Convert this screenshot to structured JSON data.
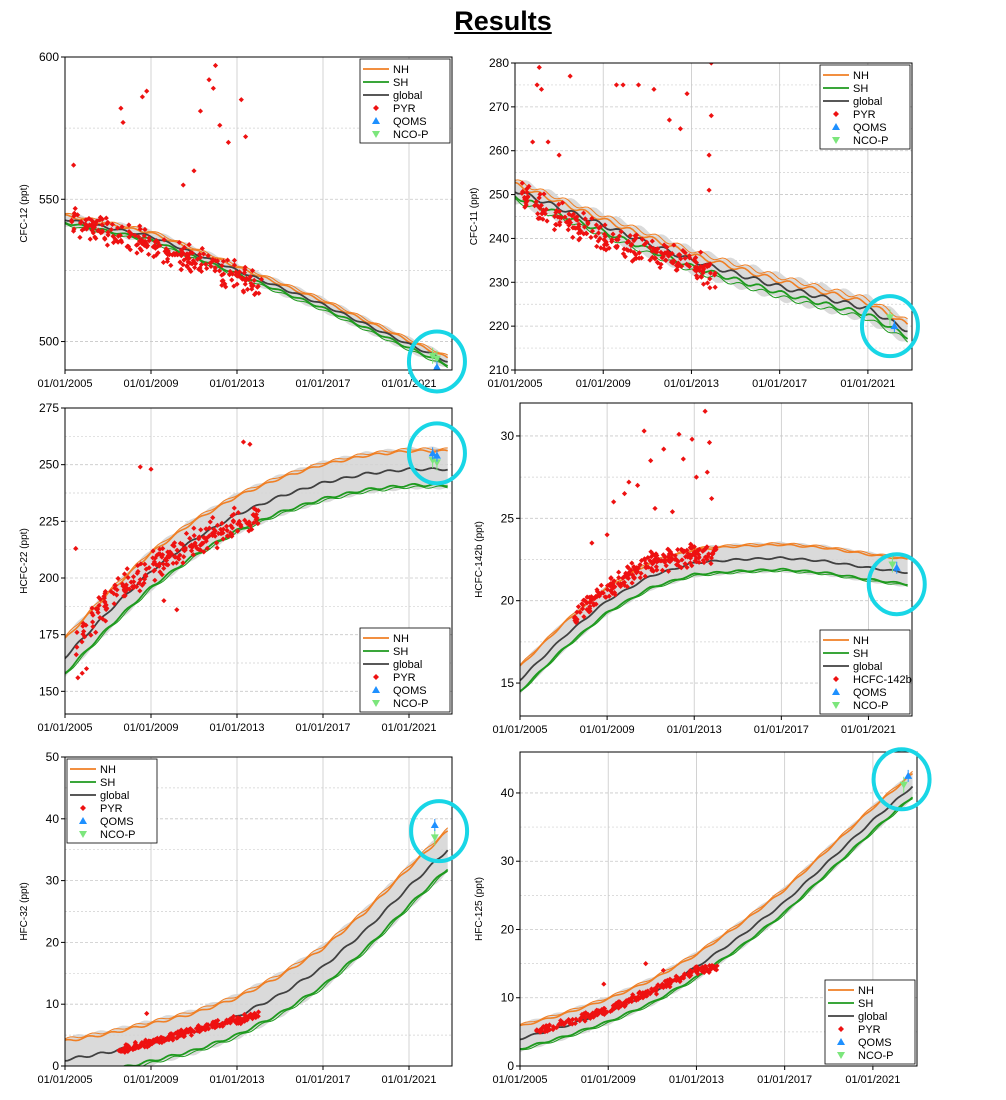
{
  "page": {
    "title": "Results"
  },
  "colors": {
    "nh": "#f07f24",
    "sh": "#1e9a1e",
    "global": "#404040",
    "band": "#d4d4d4",
    "pyr": "#ee1111",
    "qoms": "#1e90ff",
    "nco": "#7ce67c",
    "highlight": "#18d6e6"
  },
  "legend_labels": {
    "nh": "NH",
    "sh": "SH",
    "global": "global",
    "pyr": "PYR",
    "qoms": "QOMS",
    "nco": "NCO-P"
  },
  "chart_data": [
    {
      "type": "line",
      "id": "cfc12",
      "ylabel": "CFC-12 (ppt)",
      "xlim": [
        "01/01/2005",
        "01/01/2023"
      ],
      "ylim": [
        490,
        600
      ],
      "yticks": [
        500,
        550,
        600
      ],
      "xticks": [
        "01/01/2005",
        "01/01/2009",
        "01/01/2013",
        "01/01/2017",
        "01/01/2021"
      ],
      "grid": true,
      "legend_placement": "top-right",
      "scatter_label": "PYR",
      "series_model": {
        "global": [
          [
            2005,
            543
          ],
          [
            2009,
            537
          ],
          [
            2013,
            525
          ],
          [
            2017,
            513
          ],
          [
            2021,
            499
          ],
          [
            2022.8,
            493
          ]
        ],
        "nh_offset": 1.2,
        "sh_offset": -1.2,
        "band_width": 1.2
      },
      "pyr": {
        "x_range": [
          2005.3,
          2014.2
        ],
        "base": [
          [
            2005,
            543
          ],
          [
            2009,
            534
          ],
          [
            2013,
            523
          ],
          [
            2014.2,
            520
          ]
        ],
        "spread": 6,
        "outliers": [
          [
            2005.4,
            562
          ],
          [
            2007.6,
            582
          ],
          [
            2007.7,
            577
          ],
          [
            2008.6,
            586
          ],
          [
            2008.8,
            588
          ],
          [
            2011.3,
            581
          ],
          [
            2011.7,
            592
          ],
          [
            2012.0,
            597
          ],
          [
            2011.9,
            589
          ],
          [
            2012.2,
            576
          ],
          [
            2012.6,
            570
          ],
          [
            2013.2,
            585
          ],
          [
            2013.4,
            572
          ],
          [
            2010.5,
            555
          ],
          [
            2011.0,
            560
          ]
        ]
      },
      "qoms": [
        [
          2022.2,
          489
        ],
        [
          2022.3,
          491
        ]
      ],
      "nco": [
        [
          2022.1,
          495
        ],
        [
          2022.3,
          494
        ]
      ],
      "highlight": {
        "x": 2022.3,
        "y": 493
      }
    },
    {
      "type": "line",
      "id": "cfc11",
      "ylabel": "CFC-11 (ppt)",
      "xlim": [
        "01/01/2005",
        "01/01/2023"
      ],
      "ylim": [
        210,
        280
      ],
      "yticks": [
        210,
        220,
        230,
        240,
        250,
        260,
        270,
        280
      ],
      "xticks": [
        "01/01/2005",
        "01/01/2009",
        "01/01/2013",
        "01/01/2017",
        "01/01/2021"
      ],
      "grid": true,
      "legend_placement": "top-right",
      "scatter_label": "PYR",
      "series_model": {
        "global": [
          [
            2005,
            251
          ],
          [
            2009,
            243
          ],
          [
            2013,
            235
          ],
          [
            2017,
            229
          ],
          [
            2021,
            224
          ],
          [
            2022.8,
            219
          ]
        ],
        "nh_offset": 1.3,
        "sh_offset": -1.4,
        "band_width": 1.5
      },
      "pyr": {
        "x_range": [
          2005.3,
          2014.2
        ],
        "base": [
          [
            2005,
            250
          ],
          [
            2009,
            240
          ],
          [
            2013,
            234
          ],
          [
            2014.2,
            232
          ]
        ],
        "spread": 4,
        "outliers": [
          [
            2006.0,
            275
          ],
          [
            2006.1,
            279
          ],
          [
            2006.2,
            274
          ],
          [
            2007.5,
            277
          ],
          [
            2009.6,
            275
          ],
          [
            2009.9,
            275
          ],
          [
            2010.6,
            275
          ],
          [
            2011.3,
            274
          ],
          [
            2012.0,
            267
          ],
          [
            2012.5,
            265
          ],
          [
            2012.8,
            273
          ],
          [
            2013.9,
            280
          ],
          [
            2013.9,
            268
          ],
          [
            2013.8,
            259
          ],
          [
            2013.8,
            251
          ],
          [
            2006.5,
            262
          ],
          [
            2005.8,
            262
          ],
          [
            2007.0,
            259
          ]
        ]
      },
      "qoms": [
        [
          2022.2,
          220
        ]
      ],
      "nco": [
        [
          2022.0,
          222
        ]
      ],
      "highlight": {
        "x": 2022.0,
        "y": 220
      }
    },
    {
      "type": "line",
      "id": "hcfc22",
      "ylabel": "HCFC-22 (ppt)",
      "xlim": [
        "01/01/2005",
        "01/01/2023"
      ],
      "ylim": [
        140,
        275
      ],
      "yticks": [
        150,
        175,
        200,
        225,
        250,
        275
      ],
      "xticks": [
        "01/01/2005",
        "01/01/2009",
        "01/01/2013",
        "01/01/2017",
        "01/01/2021"
      ],
      "grid": true,
      "legend_placement": "bottom-right",
      "scatter_label": "PYR",
      "series_model": {
        "global": [
          [
            2005,
            165
          ],
          [
            2007,
            185
          ],
          [
            2009,
            203
          ],
          [
            2011,
            217
          ],
          [
            2013,
            228
          ],
          [
            2015,
            236
          ],
          [
            2017,
            242
          ],
          [
            2019,
            246
          ],
          [
            2021,
            248
          ],
          [
            2022.8,
            248
          ]
        ],
        "nh_offset": 8,
        "sh_offset": -7,
        "band_width": 1.5
      },
      "pyr": {
        "x_range": [
          2005.5,
          2014.0
        ],
        "base": [
          [
            2005.5,
            170
          ],
          [
            2007,
            190
          ],
          [
            2009,
            205
          ],
          [
            2011,
            215
          ],
          [
            2013,
            224
          ],
          [
            2014,
            228
          ]
        ],
        "spread": 8,
        "outliers": [
          [
            2005.6,
            156
          ],
          [
            2005.8,
            158
          ],
          [
            2006.0,
            160
          ],
          [
            2005.5,
            213
          ],
          [
            2008.5,
            249
          ],
          [
            2009.0,
            248
          ],
          [
            2013.3,
            260
          ],
          [
            2013.6,
            259
          ],
          [
            2009.6,
            190
          ],
          [
            2010.2,
            186
          ]
        ]
      },
      "qoms": [
        [
          2022.1,
          255
        ],
        [
          2022.3,
          254
        ]
      ],
      "nco": [
        [
          2022.1,
          252
        ],
        [
          2022.3,
          251
        ]
      ],
      "highlight": {
        "x": 2022.3,
        "y": 255
      }
    },
    {
      "type": "line",
      "id": "hcfc142b",
      "ylabel": "HCFC-142b (ppt)",
      "xlim": [
        "01/01/2005",
        "01/01/2023"
      ],
      "ylim": [
        13,
        32
      ],
      "yticks": [
        15,
        20,
        25,
        30
      ],
      "xticks": [
        "01/01/2005",
        "01/01/2009",
        "01/01/2013",
        "01/01/2017",
        "01/01/2021"
      ],
      "grid": true,
      "legend_placement": "bottom-right",
      "scatter_label": "HCFC-142b",
      "series_model": {
        "global": [
          [
            2005,
            15.2
          ],
          [
            2007,
            17.8
          ],
          [
            2009,
            20.0
          ],
          [
            2011,
            21.5
          ],
          [
            2013,
            22.3
          ],
          [
            2015,
            22.5
          ],
          [
            2017,
            22.6
          ],
          [
            2019,
            22.4
          ],
          [
            2021,
            22.0
          ],
          [
            2022.8,
            21.7
          ]
        ],
        "nh_offset": 0.8,
        "sh_offset": -0.7,
        "band_width": 0.15
      },
      "pyr": {
        "x_range": [
          2007.5,
          2014.0
        ],
        "base": [
          [
            2007.5,
            19.0
          ],
          [
            2009,
            20.8
          ],
          [
            2011,
            22.3
          ],
          [
            2013,
            22.8
          ],
          [
            2014,
            22.9
          ]
        ],
        "spread": 0.8,
        "outliers": [
          [
            2010.7,
            30.3
          ],
          [
            2011.6,
            29.2
          ],
          [
            2012.3,
            30.1
          ],
          [
            2012.9,
            29.8
          ],
          [
            2013.5,
            31.5
          ],
          [
            2013.7,
            29.6
          ],
          [
            2010.4,
            27.0
          ],
          [
            2011.0,
            28.5
          ],
          [
            2012.5,
            28.6
          ],
          [
            2013.1,
            27.5
          ],
          [
            2009.3,
            26.0
          ],
          [
            2009.8,
            26.5
          ],
          [
            2010.0,
            27.2
          ],
          [
            2011.2,
            25.6
          ],
          [
            2012.0,
            25.4
          ],
          [
            2013.6,
            27.8
          ],
          [
            2013.8,
            26.2
          ],
          [
            2009.0,
            24.0
          ],
          [
            2008.3,
            23.5
          ]
        ]
      },
      "qoms": [
        [
          2022.3,
          22.0
        ]
      ],
      "nco": [
        [
          2022.1,
          22.2
        ]
      ],
      "highlight": {
        "x": 2022.3,
        "y": 21.0
      }
    },
    {
      "type": "line",
      "id": "hfc32",
      "ylabel": "HFC-32 (ppt)",
      "xlim": [
        "01/01/2005",
        "01/01/2023"
      ],
      "ylim": [
        0,
        50
      ],
      "yticks": [
        0,
        10,
        20,
        30,
        40,
        50
      ],
      "xticks": [
        "01/01/2005",
        "01/01/2009",
        "01/01/2013",
        "01/01/2017",
        "01/01/2021"
      ],
      "grid": true,
      "legend_placement": "top-left",
      "scatter_label": "PYR",
      "series_model": {
        "global": [
          [
            2005,
            1
          ],
          [
            2007,
            2.2
          ],
          [
            2009,
            3.8
          ],
          [
            2011,
            5.5
          ],
          [
            2013,
            8
          ],
          [
            2015,
            11.5
          ],
          [
            2017,
            16
          ],
          [
            2019,
            22
          ],
          [
            2021,
            29
          ],
          [
            2022.8,
            35
          ]
        ],
        "nh_offset": 3,
        "sh_offset": -3,
        "band_width": 0.6
      },
      "pyr": {
        "x_range": [
          2007.5,
          2014.0
        ],
        "base": [
          [
            2007.5,
            2.5
          ],
          [
            2009,
            3.8
          ],
          [
            2011,
            5.8
          ],
          [
            2013,
            7.5
          ],
          [
            2014,
            8.2
          ]
        ],
        "spread": 0.8,
        "outliers": [
          [
            2008.8,
            8.5
          ]
        ]
      },
      "qoms": [
        [
          2022.2,
          39
        ]
      ],
      "nco": [
        [
          2022.2,
          37
        ]
      ],
      "highlight": {
        "x": 2022.4,
        "y": 38
      }
    },
    {
      "type": "line",
      "id": "hfc125",
      "ylabel": "HFC-125 (ppt)",
      "xlim": [
        "01/01/2005",
        "01/01/2023"
      ],
      "ylim": [
        0,
        46
      ],
      "yticks": [
        0,
        10,
        20,
        30,
        40
      ],
      "xticks": [
        "01/01/2005",
        "01/01/2009",
        "01/01/2013",
        "01/01/2017",
        "01/01/2021"
      ],
      "grid": true,
      "legend_placement": "bottom-right",
      "scatter_label": "PYR",
      "series_model": {
        "global": [
          [
            2005,
            4
          ],
          [
            2007,
            5.8
          ],
          [
            2009,
            8
          ],
          [
            2011,
            10.8
          ],
          [
            2013,
            14.5
          ],
          [
            2015,
            19
          ],
          [
            2017,
            24
          ],
          [
            2019,
            30
          ],
          [
            2021,
            36
          ],
          [
            2022.8,
            41
          ]
        ],
        "nh_offset": 1.8,
        "sh_offset": -1.5,
        "band_width": 0.4
      },
      "pyr": {
        "x_range": [
          2005.7,
          2014.0
        ],
        "base": [
          [
            2005.7,
            5
          ],
          [
            2009,
            8.3
          ],
          [
            2011,
            11
          ],
          [
            2013,
            14
          ],
          [
            2014,
            14.5
          ]
        ],
        "spread": 0.8,
        "outliers": [
          [
            2008.8,
            12
          ],
          [
            2010.7,
            15
          ],
          [
            2011.5,
            14
          ]
        ]
      },
      "qoms": [
        [
          2022.6,
          42.5
        ]
      ],
      "nco": [
        [
          2022.4,
          41.2
        ]
      ],
      "highlight": {
        "x": 2022.3,
        "y": 42
      }
    }
  ]
}
